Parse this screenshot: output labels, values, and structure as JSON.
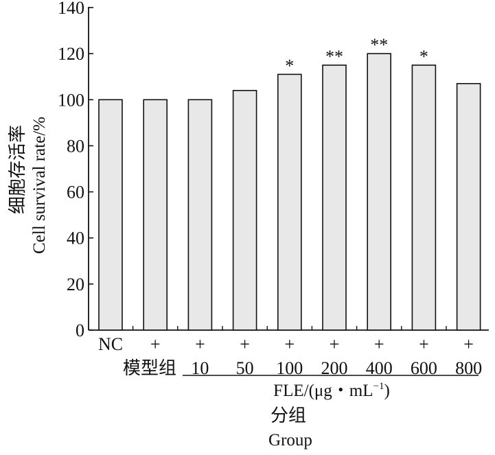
{
  "chart_data": {
    "type": "bar",
    "ylabel_cn": "细胞存活率",
    "ylabel_en": "Cell survival rate/%",
    "ylim": [
      0,
      140
    ],
    "yticks": [
      "0",
      "20",
      "40",
      "60",
      "80",
      "100",
      "120",
      "140"
    ],
    "categories": [
      "NC",
      "+",
      "+",
      "+",
      "+",
      "+",
      "+",
      "+",
      "+"
    ],
    "dose_labels": [
      "",
      "",
      "10",
      "50",
      "100",
      "200",
      "400",
      "600",
      "800"
    ],
    "row_label": "模型组",
    "values": [
      100,
      100,
      100,
      104,
      111,
      115,
      120,
      115,
      107
    ],
    "significance": [
      "",
      "",
      "",
      "",
      "*",
      "**",
      "**",
      "*",
      ""
    ],
    "group_label": "FLE/(μg・mL",
    "group_label_sup": "−1",
    "group_label_close": ")",
    "xlabel_cn": "分组",
    "xlabel_en": "Group",
    "bar_color": "#e8e8e8",
    "grid": false
  }
}
